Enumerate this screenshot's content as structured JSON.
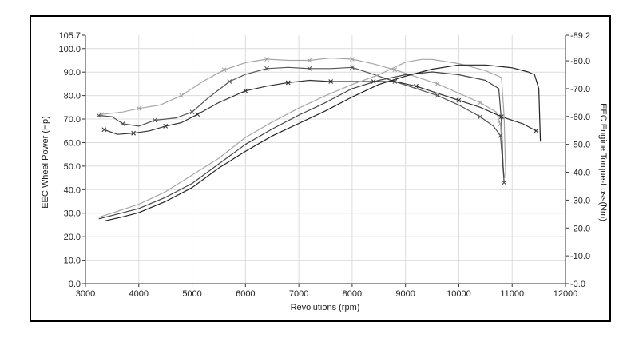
{
  "chart_data": {
    "type": "line",
    "xlabel": "Revolutions (rpm)",
    "ylabel_left": "EEC Wheel Power (Hp)",
    "ylabel_right": "EEC Engine Torque-Loss(Nm)",
    "xlim": [
      3000,
      12000
    ],
    "ylim_left": [
      0,
      105.7
    ],
    "ylim_right": [
      0,
      89.2
    ],
    "grid": true,
    "x_ticks": [
      "3000",
      "4000",
      "5000",
      "6000",
      "7000",
      "8000",
      "9000",
      "10000",
      "11000",
      "12000"
    ],
    "x_tick_values": [
      3000,
      4000,
      5000,
      6000,
      7000,
      8000,
      9000,
      10000,
      11000,
      12000
    ],
    "y_left_ticks": [
      "0.0",
      "10.0",
      "20.0",
      "30.0",
      "40.0",
      "50.0",
      "60.0",
      "70.0",
      "80.0",
      "90.0",
      "100.0",
      "105.7"
    ],
    "y_left_tick_values": [
      0,
      10,
      20,
      30,
      40,
      50,
      60,
      70,
      80,
      90,
      100,
      105.7
    ],
    "y_right_ticks": [
      "0.0",
      "10.0",
      "20.0",
      "30.0",
      "40.0",
      "50.0",
      "60.0",
      "70.0",
      "80.0",
      "89.2"
    ],
    "y_right_tick_values": [
      0,
      10,
      20,
      30,
      40,
      50,
      60,
      70,
      80,
      89.2
    ],
    "series": [
      {
        "axis": "left",
        "color": "#a6a6a6",
        "marker": "x",
        "x": [
          3300,
          3700,
          4000,
          4400,
          4800,
          5200,
          5600,
          6000,
          6400,
          6800,
          7200,
          7600,
          8000,
          8400,
          8800,
          9200,
          9600,
          10000,
          10400,
          10700,
          10780,
          10820,
          10850
        ],
        "y": [
          72,
          73,
          74.5,
          76,
          80,
          86,
          91,
          94,
          95.5,
          95,
          95,
          96,
          95.5,
          93.5,
          91,
          88,
          85,
          81,
          77,
          73,
          68,
          55,
          43
        ]
      },
      {
        "axis": "left",
        "color": "#555555",
        "marker": "x",
        "x": [
          3250,
          3500,
          3700,
          4000,
          4300,
          4700,
          5000,
          5300,
          5700,
          6000,
          6400,
          6800,
          7200,
          7600,
          8000,
          8400,
          8800,
          9200,
          9600,
          10000,
          10400,
          10650,
          10780,
          10820,
          10850
        ],
        "y": [
          71.5,
          71,
          68,
          67,
          69.5,
          70.5,
          73,
          79,
          86,
          89,
          91.5,
          92,
          91.5,
          91.5,
          92,
          89,
          86,
          83,
          80,
          76,
          71,
          67,
          63,
          52,
          43
        ]
      },
      {
        "axis": "left",
        "color": "#333333",
        "marker": "x",
        "x": [
          3350,
          3600,
          3900,
          4200,
          4500,
          4800,
          5100,
          5500,
          6000,
          6400,
          6800,
          7200,
          7600,
          8000,
          8400,
          8800,
          9200,
          9600,
          10000,
          10400,
          10800,
          11200,
          11450
        ],
        "y": [
          65.5,
          63.5,
          64,
          65,
          67,
          68.5,
          72,
          77,
          82,
          84,
          85.5,
          86.5,
          86,
          86,
          86,
          86,
          84,
          81,
          78,
          75,
          71,
          68,
          65
        ]
      },
      {
        "axis": "right",
        "color": "#a6a6a6",
        "marker": "none",
        "x": [
          3250,
          3600,
          4000,
          4500,
          5000,
          5500,
          6000,
          6500,
          7000,
          7500,
          8000,
          8500,
          9000,
          9300,
          9500,
          10000,
          10500,
          10800,
          10850,
          10880
        ],
        "y": [
          23.8,
          26,
          28.5,
          33,
          39,
          45,
          52.5,
          58,
          63,
          67.5,
          71.5,
          75,
          79.5,
          80.5,
          80.5,
          79,
          76.5,
          74,
          60,
          38
        ]
      },
      {
        "axis": "right",
        "color": "#444444",
        "marker": "none",
        "x": [
          3250,
          3600,
          4000,
          4500,
          5000,
          5500,
          6000,
          6500,
          7000,
          7500,
          8000,
          8500,
          9000,
          9500,
          10000,
          10500,
          10750,
          10800,
          10830,
          10850
        ],
        "y": [
          23.3,
          25,
          27,
          31,
          36,
          43,
          50,
          55.5,
          60.5,
          65,
          70,
          73,
          75,
          76,
          75,
          73,
          70,
          58,
          42,
          38
        ]
      },
      {
        "axis": "right",
        "color": "#222222",
        "marker": "none",
        "x": [
          3350,
          3700,
          4000,
          4500,
          5000,
          5500,
          6000,
          6500,
          7000,
          7500,
          8000,
          8500,
          9000,
          9500,
          10000,
          10500,
          11000,
          11300,
          11420,
          11500,
          11530
        ],
        "y": [
          22.5,
          24,
          25.5,
          29.5,
          34.5,
          41.5,
          47.5,
          53,
          57.5,
          62,
          67,
          71.5,
          74.5,
          77,
          78.5,
          78.5,
          77.5,
          76,
          75,
          70,
          51
        ]
      }
    ]
  }
}
